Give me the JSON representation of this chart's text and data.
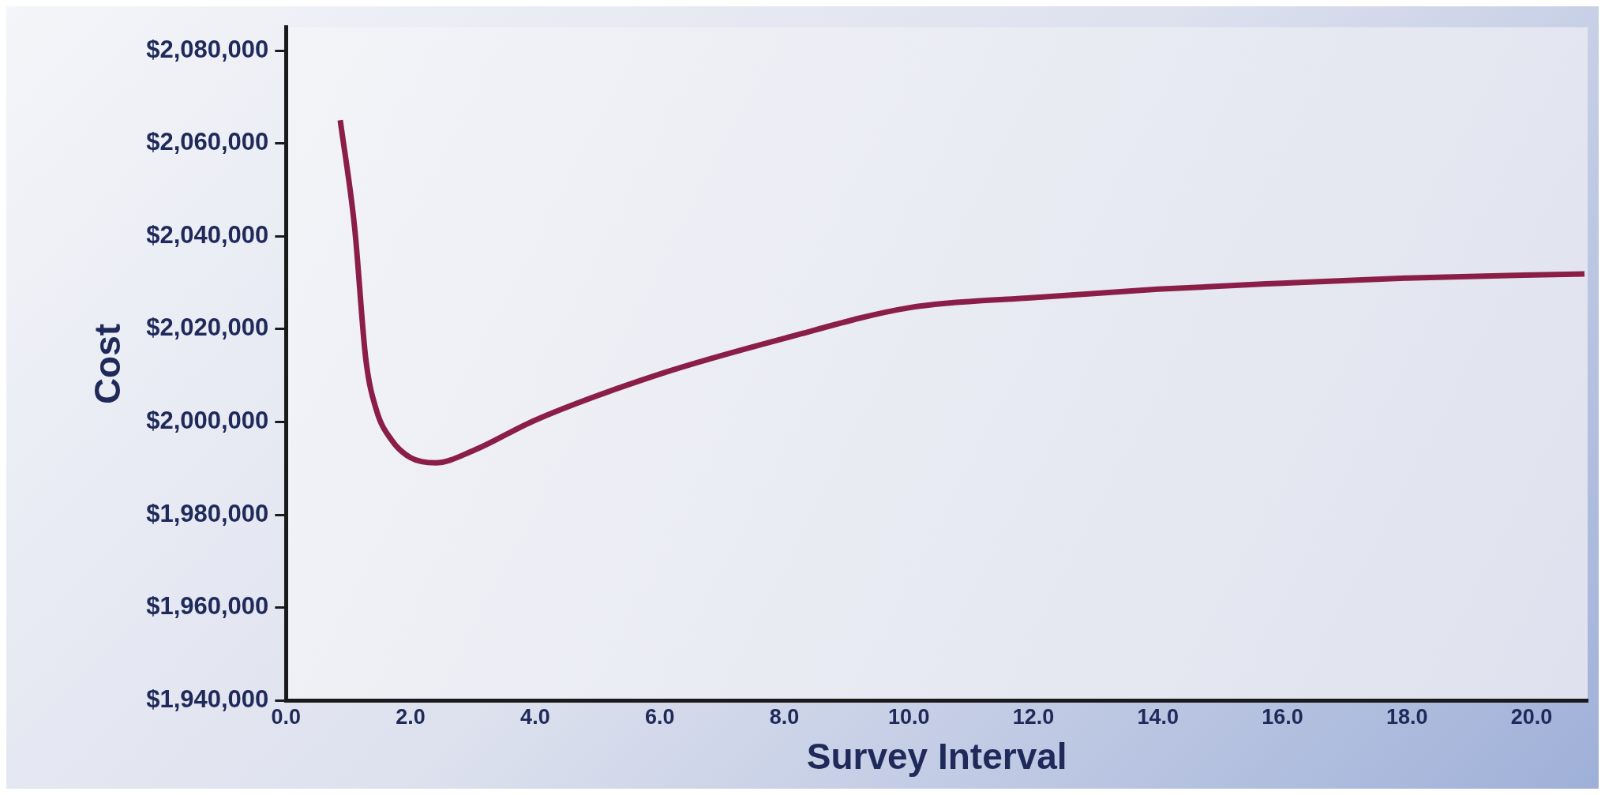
{
  "chart_data": {
    "type": "line",
    "xlabel": "Survey Interval",
    "ylabel": "Cost",
    "series": [
      {
        "color": "#8b1e47",
        "x": [
          0.87,
          1.1,
          1.28,
          1.45,
          1.7,
          2.0,
          2.4,
          3.0,
          4.0,
          6.0,
          8.0,
          10.0,
          12.0,
          14.0,
          16.0,
          18.0,
          20.85
        ],
        "values": [
          2065000,
          2042000,
          2013600,
          2002600,
          1996000,
          1992300,
          1991200,
          1993800,
          2000400,
          2010300,
          2018000,
          2024600,
          2026800,
          2028600,
          2029900,
          2031000,
          2031900
        ]
      }
    ],
    "xlim": [
      0,
      20.9
    ],
    "xticks": [
      {
        "value": 0,
        "label": "0.0"
      },
      {
        "value": 2,
        "label": "2.0"
      },
      {
        "value": 4,
        "label": "4.0"
      },
      {
        "value": 6,
        "label": "6.0"
      },
      {
        "value": 8,
        "label": "8.0"
      },
      {
        "value": 10,
        "label": "10.0"
      },
      {
        "value": 12,
        "label": "12.0"
      },
      {
        "value": 14,
        "label": "14.0"
      },
      {
        "value": 16,
        "label": "16.0"
      },
      {
        "value": 18,
        "label": "18.0"
      },
      {
        "value": 20,
        "label": "20.0"
      }
    ],
    "ylim": [
      1940000,
      2085000
    ],
    "yticks": [
      {
        "value": 1940000,
        "label": "$1,940,000"
      },
      {
        "value": 1960000,
        "label": "$1,960,000"
      },
      {
        "value": 1980000,
        "label": "$1,980,000"
      },
      {
        "value": 2000000,
        "label": "$2,000,000"
      },
      {
        "value": 2020000,
        "label": "$2,020,000"
      },
      {
        "value": 2040000,
        "label": "$2,040,000"
      },
      {
        "value": 2060000,
        "label": "$2,060,000"
      },
      {
        "value": 2080000,
        "label": "$2,080,000"
      }
    ],
    "grid": false,
    "legend": false,
    "marker": "none",
    "line_style": "solid"
  }
}
